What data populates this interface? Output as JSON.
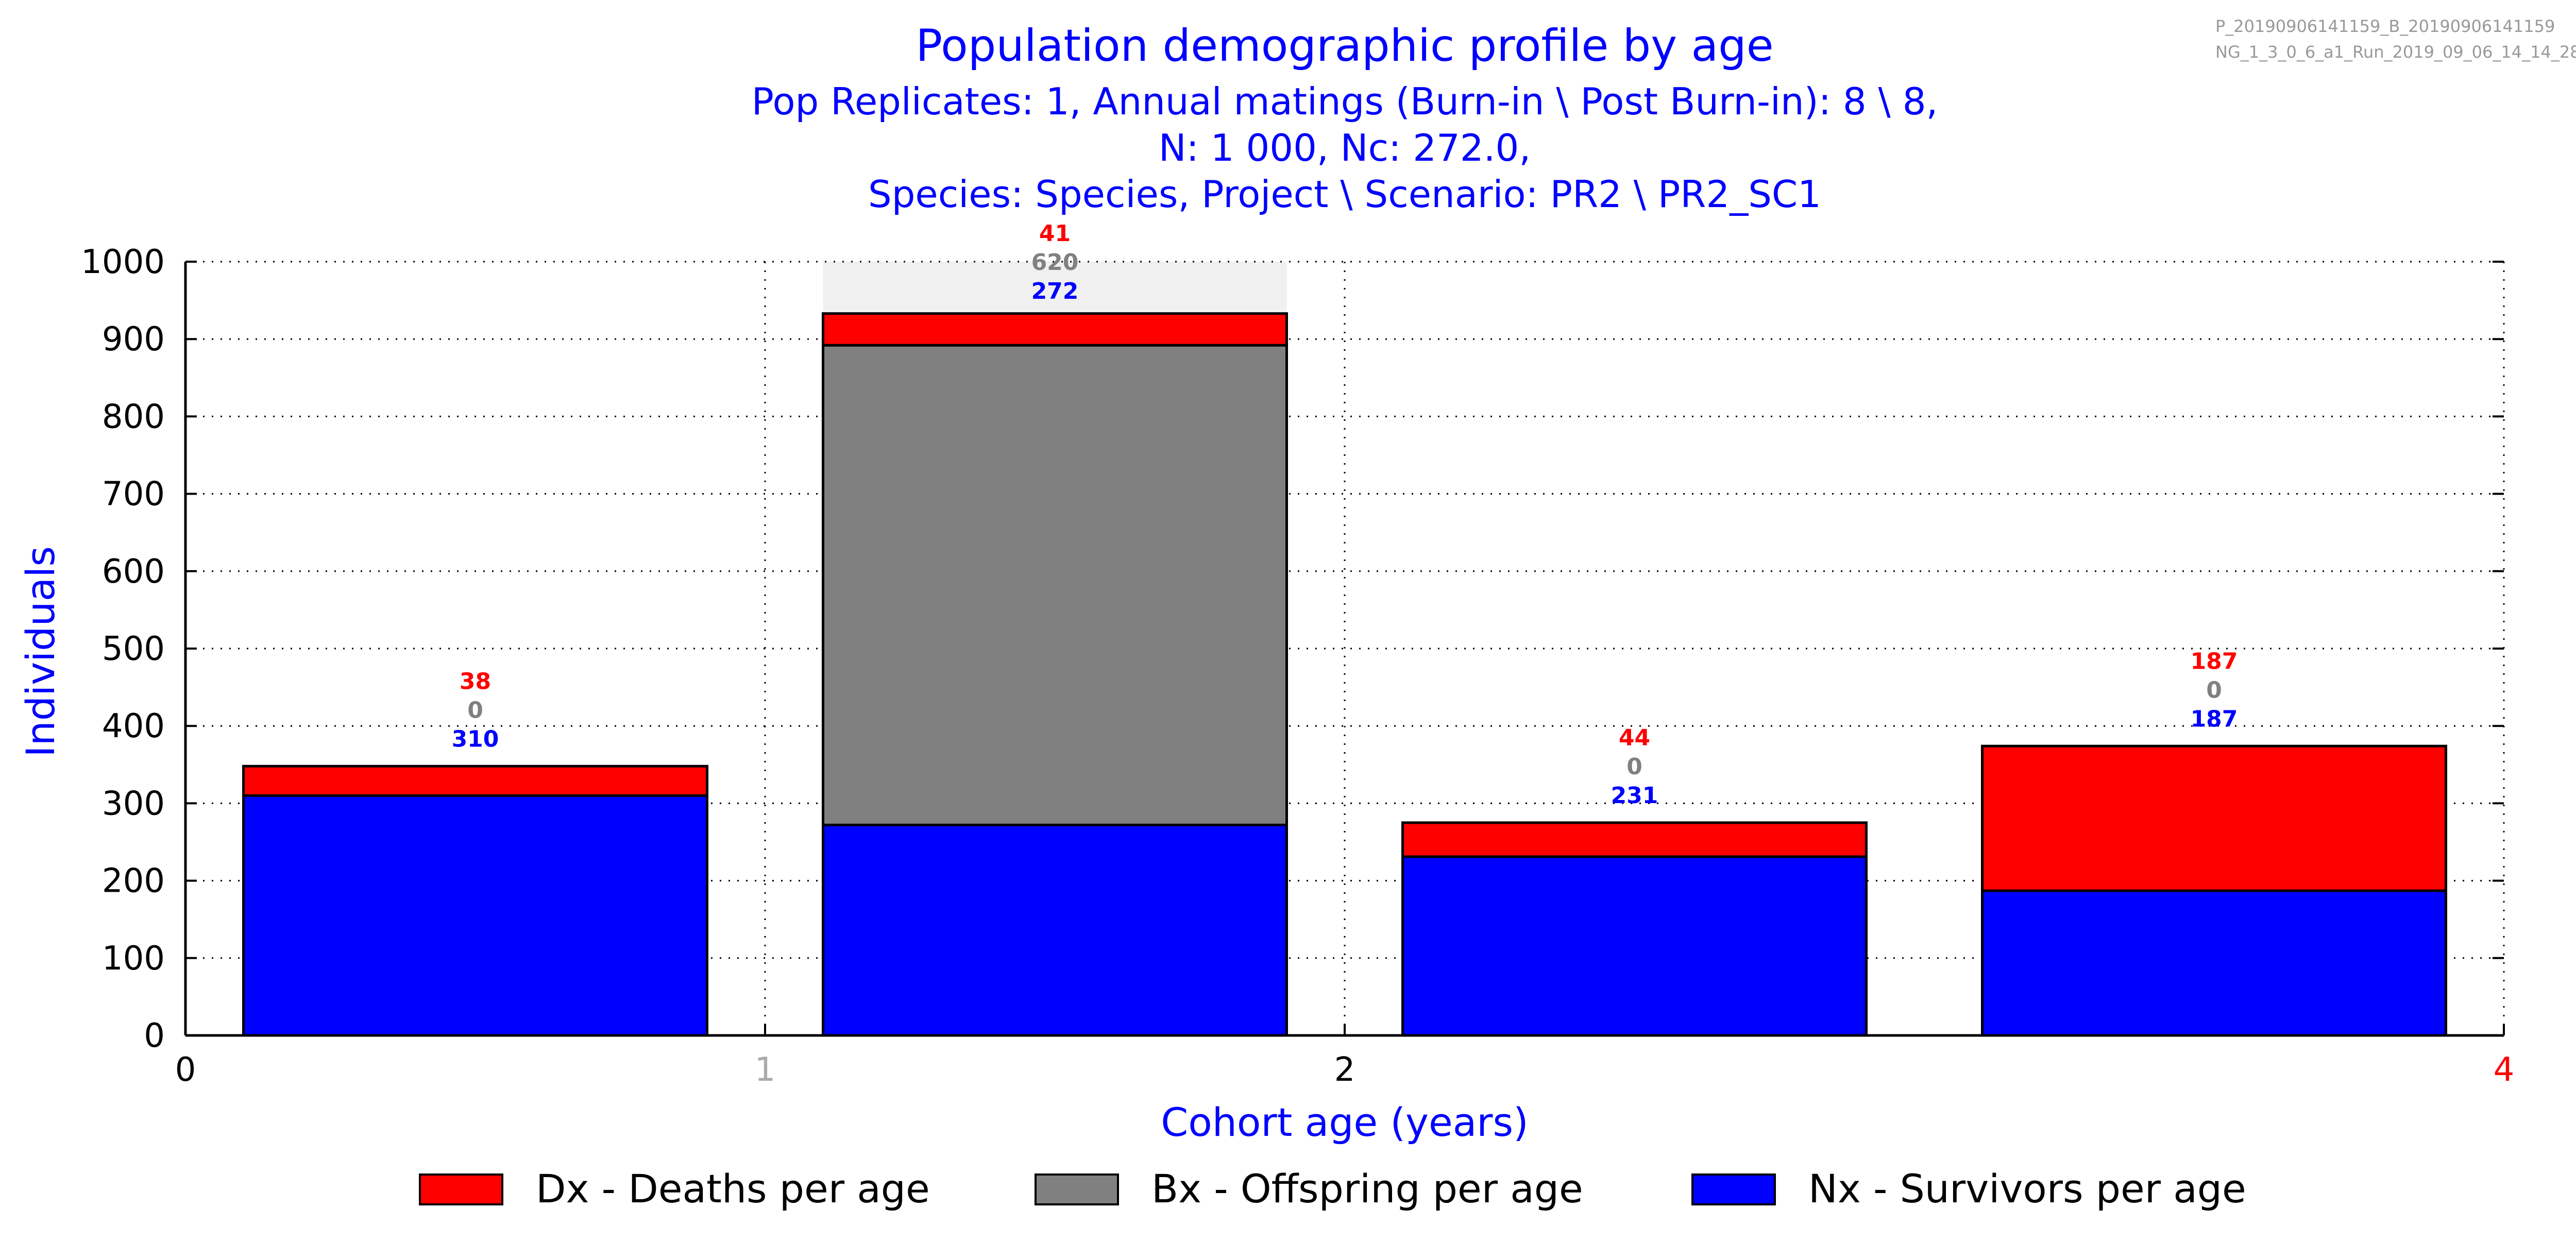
{
  "header": {
    "title": "Population demographic profile by age",
    "subtitle_lines": [
      "Pop Replicates: 1, Annual matings (Burn-in \\ Post Burn-in): 8 \\ 8,",
      "N: 1 000, Nc: 272.0,",
      "Species: Species, Project \\ Scenario: PR2 \\ PR2_SC1"
    ],
    "run_info_lines": [
      "P_20190906141159_B_20190906141159",
      "NG_1_3_0_6_a1_Run_2019_09_06_14_14_28"
    ]
  },
  "chart_data": {
    "type": "bar",
    "stacked": true,
    "xlabel": "Cohort age (years)",
    "ylabel": "Individuals",
    "ylim": [
      0,
      1000
    ],
    "yticks": [
      0,
      100,
      200,
      300,
      400,
      500,
      600,
      700,
      800,
      900,
      1000
    ],
    "xlim": [
      0,
      4
    ],
    "xticks": [
      {
        "value": 0,
        "label": "0",
        "color": "#000000"
      },
      {
        "value": 1,
        "label": "1",
        "color": "#aaaaaa"
      },
      {
        "value": 2,
        "label": "2",
        "color": "#000000"
      },
      {
        "value": 4,
        "label": "4",
        "color": "#ff0000"
      }
    ],
    "grid": true,
    "bars": [
      {
        "x_start": 0.1,
        "x_end": 0.9,
        "nx": 310,
        "bx": 0,
        "dx": 38
      },
      {
        "x_start": 1.1,
        "x_end": 1.9,
        "nx": 272,
        "bx": 620,
        "dx": 41
      },
      {
        "x_start": 2.1,
        "x_end": 2.9,
        "nx": 231,
        "bx": 0,
        "dx": 44
      },
      {
        "x_start": 3.1,
        "x_end": 3.9,
        "nx": 187,
        "bx": 0,
        "dx": 187
      }
    ],
    "highlight_band": {
      "x_start": 1.1,
      "x_end": 1.9,
      "y_top": 1000
    },
    "vertical_dotted_lines": [
      1,
      2
    ],
    "series": [
      {
        "key": "dx",
        "name": "Dx - Deaths per age",
        "color": "#ff0000",
        "label_color": "#ff0000"
      },
      {
        "key": "bx",
        "name": "Bx - Offspring per age",
        "color": "#808080",
        "label_color": "#808080"
      },
      {
        "key": "nx",
        "name": "Nx - Survivors per age",
        "color": "#0000ff",
        "label_color": "#0000ff"
      }
    ],
    "legend_position": "bottom",
    "colors": {
      "title": "#0000ff",
      "axis_label": "#0000ff",
      "tick": "#000000",
      "run_info": "#999999",
      "highlight": "#f0f0f0"
    }
  }
}
